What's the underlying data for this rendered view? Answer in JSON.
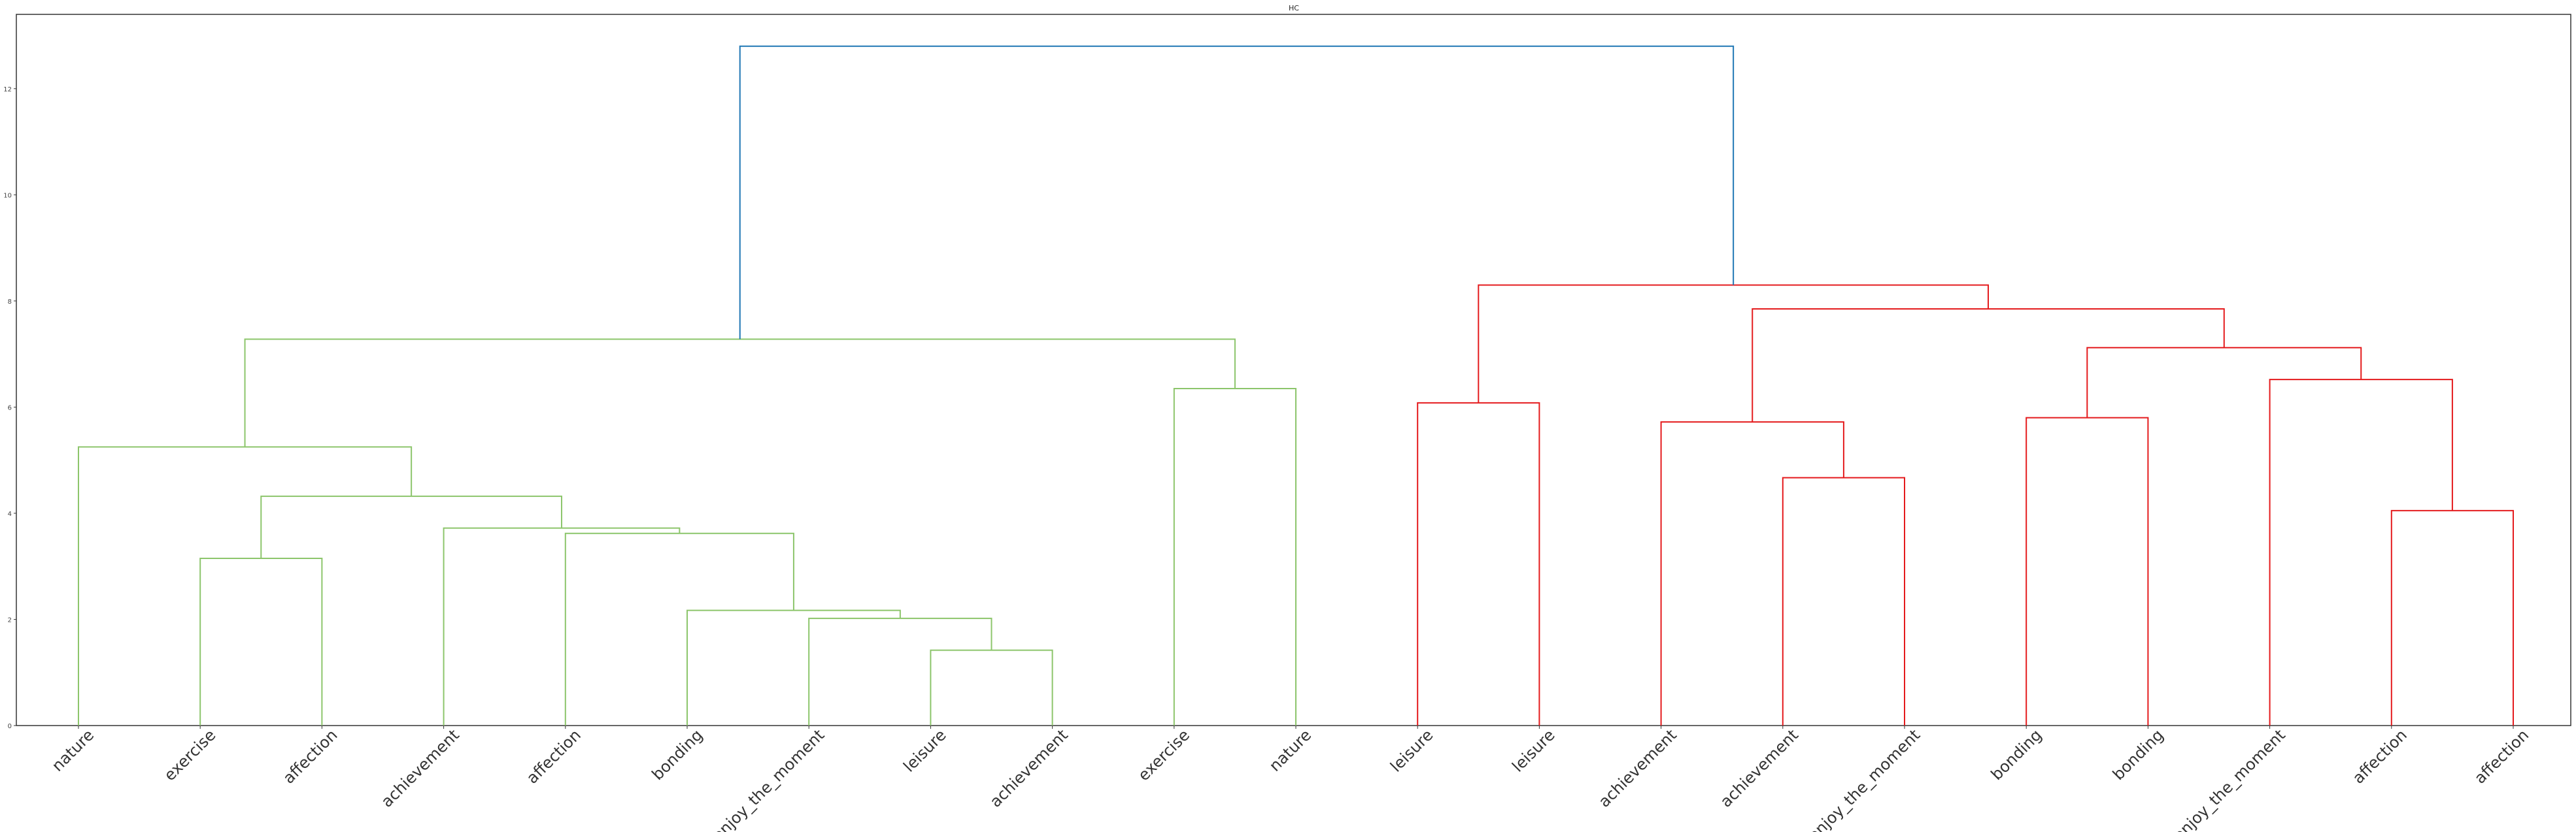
{
  "chart_data": {
    "type": "dendrogram",
    "title": "HC",
    "xlabel": "",
    "ylabel": "",
    "ylim": [
      0,
      13.4
    ],
    "yticks": [
      0,
      2,
      4,
      6,
      8,
      10,
      12
    ],
    "leaves": [
      "nature",
      "exercise",
      "affection",
      "achievement",
      "affection",
      "bonding",
      "enjoy_the_moment",
      "leisure",
      "achievement",
      "exercise",
      "nature",
      "leisure",
      "leisure",
      "achievement",
      "achievement",
      "enjoy_the_moment",
      "bonding",
      "bonding",
      "enjoy_the_moment",
      "affection",
      "affection"
    ],
    "colors": {
      "root": "#1f77b4",
      "cluster_a": "#8cc56b",
      "cluster_b": "#e41a1c"
    },
    "merges": [
      {
        "left": "L1",
        "right": "L2",
        "height": 3.15,
        "color": "cluster_a"
      },
      {
        "left": "L7",
        "right": "L8",
        "height": 1.42,
        "color": "cluster_a"
      },
      {
        "left": "L6",
        "right": "m1",
        "height": 2.02,
        "color": "cluster_a"
      },
      {
        "left": "L5",
        "right": "m2",
        "height": 2.17,
        "color": "cluster_a"
      },
      {
        "left": "L4",
        "right": "m3",
        "height": 3.62,
        "color": "cluster_a"
      },
      {
        "left": "L3",
        "right": "m4",
        "height": 3.72,
        "color": "cluster_a"
      },
      {
        "left": "m0",
        "right": "m5",
        "height": 4.32,
        "color": "cluster_a"
      },
      {
        "left": "L0",
        "right": "m6",
        "height": 5.25,
        "color": "cluster_a"
      },
      {
        "left": "L9",
        "right": "L10",
        "height": 6.35,
        "color": "cluster_a"
      },
      {
        "left": "m7",
        "right": "m8",
        "height": 7.28,
        "color": "cluster_a"
      },
      {
        "left": "L11",
        "right": "L12",
        "height": 6.08,
        "color": "cluster_b"
      },
      {
        "left": "L14",
        "right": "L15",
        "height": 4.67,
        "color": "cluster_b"
      },
      {
        "left": "L13",
        "right": "m11",
        "height": 5.72,
        "color": "cluster_b"
      },
      {
        "left": "L16",
        "right": "L17",
        "height": 5.8,
        "color": "cluster_b"
      },
      {
        "left": "L19",
        "right": "L20",
        "height": 4.05,
        "color": "cluster_b"
      },
      {
        "left": "L18",
        "right": "m14",
        "height": 6.52,
        "color": "cluster_b"
      },
      {
        "left": "m13",
        "right": "m15",
        "height": 7.12,
        "color": "cluster_b"
      },
      {
        "left": "m12",
        "right": "m16",
        "height": 7.85,
        "color": "cluster_b"
      },
      {
        "left": "m10",
        "right": "m17",
        "height": 8.3,
        "color": "cluster_b"
      },
      {
        "left": "m9",
        "right": "m18",
        "height": 12.8,
        "color": "root"
      }
    ]
  }
}
